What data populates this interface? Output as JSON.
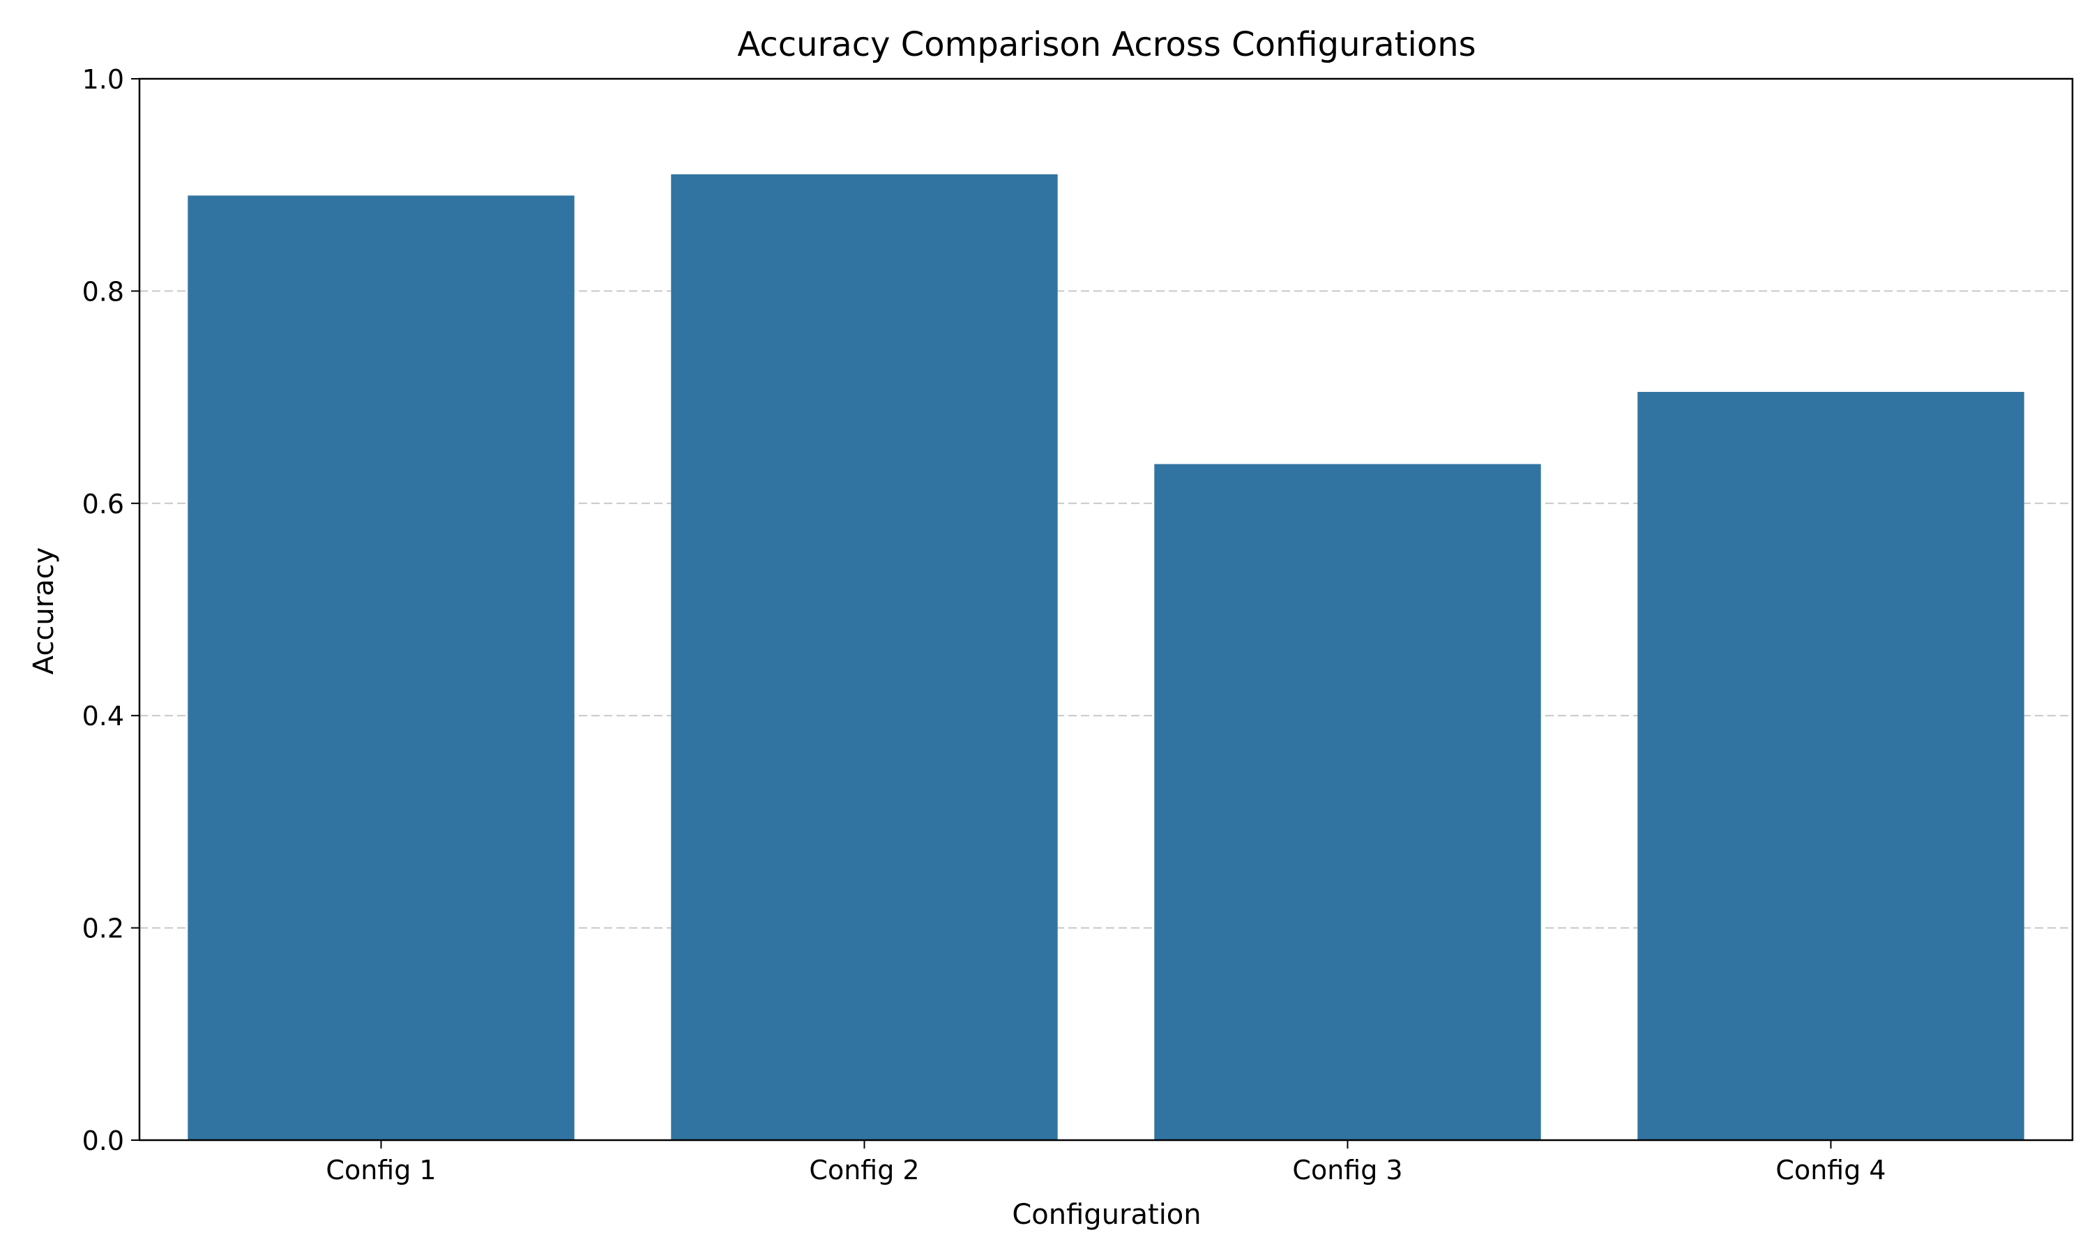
{
  "chart_data": {
    "type": "bar",
    "title": "Accuracy Comparison Across Configurations",
    "xlabel": "Configuration",
    "ylabel": "Accuracy",
    "categories": [
      "Config 1",
      "Config 2",
      "Config 3",
      "Config 4"
    ],
    "values": [
      0.89,
      0.91,
      0.637,
      0.705
    ],
    "ylim": [
      0,
      1.0
    ],
    "yticks": [
      "0.0",
      "0.2",
      "0.4",
      "0.6",
      "0.8",
      "1.0"
    ],
    "grid": "horizontal dashed at major ticks",
    "legend": "none",
    "colors": {
      "bar": "#3274a1",
      "grid": "#c8c8c8",
      "axis": "#000000"
    }
  }
}
